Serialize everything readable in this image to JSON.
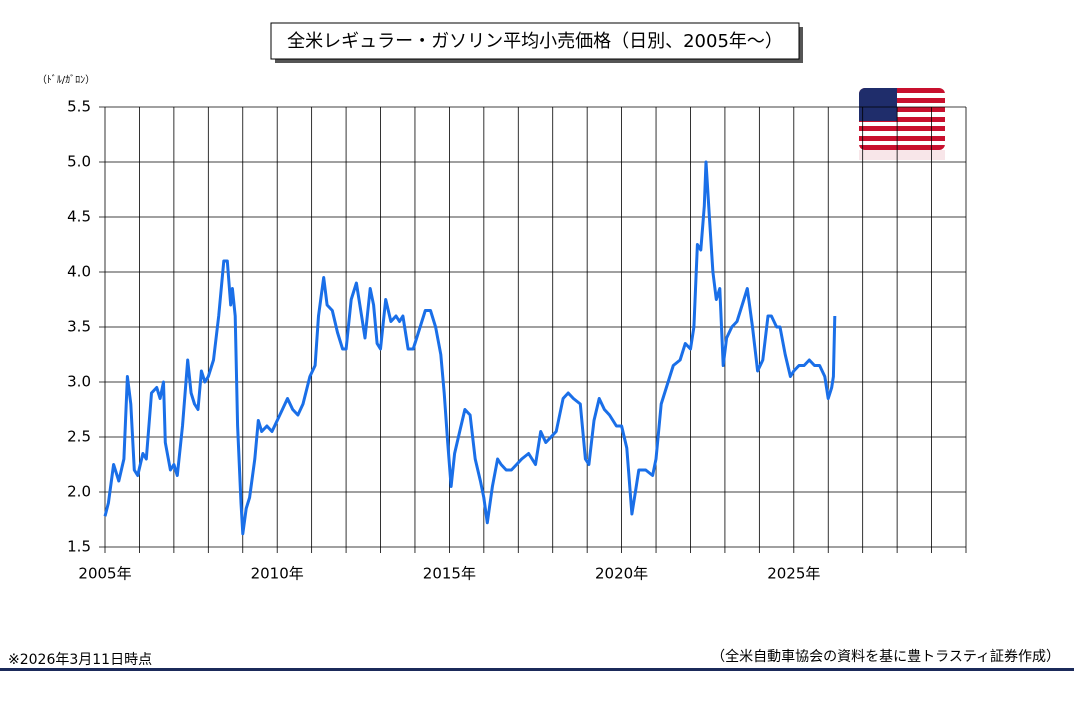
{
  "chart_data": {
    "type": "line",
    "title": "全米レギュラー・ガソリン平均小売価格（日別、2005年～）",
    "y_label": "（ﾄﾞﾙ/ｶﾞﾛﾝ）",
    "note": "※2026年3月11日時点",
    "source": "（全米自動車協会の資料を基に豊トラスティ証券作成）",
    "xlim": [
      2005,
      2030
    ],
    "ylim": [
      1.5,
      5.5
    ],
    "yticks": [
      1.5,
      {
        "value": 2,
        "label": "2.0"
      },
      2.5,
      {
        "value": 3,
        "label": "3.0"
      },
      3.5,
      {
        "value": 4,
        "label": "4.0"
      },
      4.5,
      {
        "value": 5,
        "label": "5.0"
      },
      5.5
    ],
    "xticks": [
      {
        "value": 2005,
        "label": "2005年"
      },
      {
        "value": 2010,
        "label": "2010年"
      },
      {
        "value": 2015,
        "label": "2015年"
      },
      {
        "value": 2020,
        "label": "2020年"
      },
      {
        "value": 2025,
        "label": "2025年"
      }
    ],
    "xgrid": [
      2005,
      2006,
      2007,
      2008,
      2009,
      2010,
      2011,
      2012,
      2013,
      2014,
      2015,
      2016,
      2017,
      2018,
      2019,
      2020,
      2021,
      2022,
      2023,
      2024,
      2025,
      2026,
      2027,
      2028,
      2029,
      2030
    ],
    "grid": true,
    "series": [
      {
        "color": "#1a6fe8",
        "x": [
          2005.0,
          2005.1,
          2005.25,
          2005.4,
          2005.55,
          2005.65,
          2005.75,
          2005.85,
          2005.95,
          2006.1,
          2006.2,
          2006.35,
          2006.5,
          2006.6,
          2006.7,
          2006.75,
          2006.9,
          2007.0,
          2007.1,
          2007.25,
          2007.4,
          2007.5,
          2007.6,
          2007.7,
          2007.8,
          2007.9,
          2008.0,
          2008.15,
          2008.3,
          2008.45,
          2008.55,
          2008.65,
          2008.7,
          2008.78,
          2008.85,
          2008.95,
          2009.0,
          2009.1,
          2009.2,
          2009.35,
          2009.45,
          2009.55,
          2009.7,
          2009.85,
          2010.0,
          2010.15,
          2010.3,
          2010.45,
          2010.6,
          2010.75,
          2010.95,
          2011.1,
          2011.2,
          2011.35,
          2011.45,
          2011.6,
          2011.75,
          2011.9,
          2012.0,
          2012.15,
          2012.3,
          2012.45,
          2012.55,
          2012.7,
          2012.8,
          2012.9,
          2013.0,
          2013.15,
          2013.3,
          2013.45,
          2013.55,
          2013.65,
          2013.8,
          2013.95,
          2014.1,
          2014.3,
          2014.45,
          2014.6,
          2014.75,
          2014.85,
          2014.95,
          2015.05,
          2015.15,
          2015.3,
          2015.45,
          2015.6,
          2015.75,
          2015.9,
          2016.0,
          2016.1,
          2016.25,
          2016.4,
          2016.5,
          2016.65,
          2016.8,
          2016.95,
          2017.1,
          2017.3,
          2017.5,
          2017.65,
          2017.8,
          2017.95,
          2018.1,
          2018.3,
          2018.45,
          2018.6,
          2018.8,
          2018.95,
          2019.05,
          2019.2,
          2019.35,
          2019.5,
          2019.65,
          2019.85,
          2020.0,
          2020.15,
          2020.3,
          2020.4,
          2020.5,
          2020.7,
          2020.9,
          2021.0,
          2021.15,
          2021.35,
          2021.5,
          2021.7,
          2021.85,
          2022.0,
          2022.1,
          2022.2,
          2022.3,
          2022.4,
          2022.45,
          2022.55,
          2022.65,
          2022.75,
          2022.85,
          2022.95,
          2023.05,
          2023.2,
          2023.35,
          2023.55,
          2023.65,
          2023.8,
          2023.95,
          2024.1,
          2024.25,
          2024.35,
          2024.5,
          2024.6,
          2024.75,
          2024.9,
          2025.0,
          2025.15,
          2025.3,
          2025.45,
          2025.6,
          2025.75,
          2025.9,
          2026.0,
          2026.1,
          2026.15,
          2026.19
        ],
        "values": [
          1.78,
          1.9,
          2.25,
          2.1,
          2.3,
          3.05,
          2.8,
          2.2,
          2.15,
          2.35,
          2.3,
          2.9,
          2.95,
          2.85,
          3.0,
          2.45,
          2.2,
          2.25,
          2.15,
          2.6,
          3.2,
          2.9,
          2.8,
          2.75,
          3.1,
          3.0,
          3.05,
          3.2,
          3.6,
          4.1,
          4.1,
          3.7,
          3.85,
          3.6,
          2.6,
          1.9,
          1.62,
          1.85,
          1.95,
          2.3,
          2.65,
          2.55,
          2.6,
          2.55,
          2.65,
          2.75,
          2.85,
          2.75,
          2.7,
          2.8,
          3.05,
          3.15,
          3.6,
          3.95,
          3.7,
          3.65,
          3.45,
          3.3,
          3.3,
          3.75,
          3.9,
          3.6,
          3.4,
          3.85,
          3.7,
          3.35,
          3.3,
          3.75,
          3.55,
          3.6,
          3.55,
          3.6,
          3.3,
          3.3,
          3.45,
          3.65,
          3.65,
          3.5,
          3.25,
          2.9,
          2.45,
          2.05,
          2.35,
          2.55,
          2.75,
          2.7,
          2.3,
          2.1,
          1.95,
          1.72,
          2.05,
          2.3,
          2.25,
          2.2,
          2.2,
          2.25,
          2.3,
          2.35,
          2.25,
          2.55,
          2.45,
          2.5,
          2.55,
          2.85,
          2.9,
          2.85,
          2.8,
          2.3,
          2.25,
          2.65,
          2.85,
          2.75,
          2.7,
          2.6,
          2.6,
          2.4,
          1.8,
          2.0,
          2.2,
          2.2,
          2.15,
          2.3,
          2.8,
          3.0,
          3.15,
          3.2,
          3.35,
          3.3,
          3.5,
          4.25,
          4.2,
          4.6,
          5.0,
          4.5,
          4.0,
          3.75,
          3.85,
          3.15,
          3.4,
          3.5,
          3.55,
          3.75,
          3.85,
          3.5,
          3.1,
          3.2,
          3.6,
          3.6,
          3.5,
          3.5,
          3.25,
          3.05,
          3.1,
          3.15,
          3.15,
          3.2,
          3.15,
          3.15,
          3.05,
          2.85,
          2.95,
          3.05,
          3.6
        ]
      }
    ]
  }
}
